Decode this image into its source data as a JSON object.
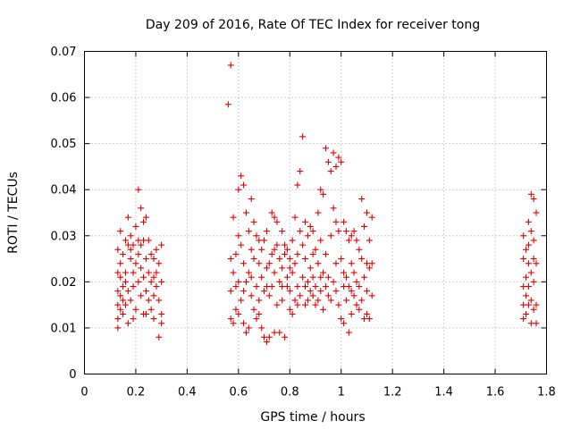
{
  "chart_data": {
    "type": "scatter",
    "title": "Day 209 of 2016, Rate Of TEC Index for receiver tong",
    "xlabel": "GPS time / hours",
    "ylabel": "ROTI / TECUs",
    "xlim": [
      0,
      1.8
    ],
    "ylim": [
      0,
      0.07
    ],
    "xticks": [
      "0",
      "0.2",
      "0.4",
      "0.6",
      "0.8",
      "1",
      "1.2",
      "1.4",
      "1.6",
      "1.8"
    ],
    "yticks": [
      "0",
      "0.01",
      "0.02",
      "0.03",
      "0.04",
      "0.05",
      "0.06",
      "0.07"
    ],
    "grid": true,
    "marker": "plus",
    "color": "#e00000",
    "series": [
      {
        "points": [
          [
            0.13,
            0.027
          ],
          [
            0.13,
            0.022
          ],
          [
            0.13,
            0.018
          ],
          [
            0.13,
            0.015
          ],
          [
            0.13,
            0.012
          ],
          [
            0.13,
            0.01
          ],
          [
            0.14,
            0.021
          ],
          [
            0.14,
            0.017
          ],
          [
            0.14,
            0.014
          ],
          [
            0.14,
            0.024
          ],
          [
            0.15,
            0.019
          ],
          [
            0.15,
            0.016
          ],
          [
            0.15,
            0.013
          ],
          [
            0.15,
            0.026
          ],
          [
            0.16,
            0.022
          ],
          [
            0.16,
            0.015
          ],
          [
            0.16,
            0.02
          ],
          [
            0.17,
            0.034
          ],
          [
            0.17,
            0.028
          ],
          [
            0.17,
            0.018
          ],
          [
            0.17,
            0.011
          ],
          [
            0.18,
            0.03
          ],
          [
            0.18,
            0.025
          ],
          [
            0.18,
            0.016
          ],
          [
            0.18,
            0.027
          ],
          [
            0.19,
            0.022
          ],
          [
            0.19,
            0.019
          ],
          [
            0.19,
            0.028
          ],
          [
            0.2,
            0.032
          ],
          [
            0.2,
            0.024
          ],
          [
            0.2,
            0.014
          ],
          [
            0.21,
            0.04
          ],
          [
            0.21,
            0.029
          ],
          [
            0.21,
            0.02
          ],
          [
            0.21,
            0.026
          ],
          [
            0.22,
            0.036
          ],
          [
            0.22,
            0.028
          ],
          [
            0.22,
            0.017
          ],
          [
            0.22,
            0.023
          ],
          [
            0.23,
            0.033
          ],
          [
            0.23,
            0.029
          ],
          [
            0.23,
            0.013
          ],
          [
            0.23,
            0.021
          ],
          [
            0.24,
            0.034
          ],
          [
            0.24,
            0.025
          ],
          [
            0.24,
            0.018
          ],
          [
            0.25,
            0.022
          ],
          [
            0.25,
            0.016
          ],
          [
            0.25,
            0.029
          ],
          [
            0.26,
            0.026
          ],
          [
            0.26,
            0.02
          ],
          [
            0.26,
            0.014
          ],
          [
            0.27,
            0.025
          ],
          [
            0.27,
            0.017
          ],
          [
            0.27,
            0.012
          ],
          [
            0.28,
            0.027
          ],
          [
            0.28,
            0.022
          ],
          [
            0.28,
            0.019
          ],
          [
            0.29,
            0.024
          ],
          [
            0.29,
            0.016
          ],
          [
            0.29,
            0.008
          ],
          [
            0.3,
            0.028
          ],
          [
            0.3,
            0.02
          ],
          [
            0.3,
            0.013
          ],
          [
            0.3,
            0.011
          ],
          [
            0.16,
            0.029
          ],
          [
            0.19,
            0.012
          ],
          [
            0.24,
            0.013
          ],
          [
            0.27,
            0.021
          ],
          [
            0.14,
            0.031
          ],
          [
            0.56,
            0.0585
          ],
          [
            0.57,
            0.067
          ],
          [
            0.57,
            0.025
          ],
          [
            0.57,
            0.018
          ],
          [
            0.57,
            0.012
          ],
          [
            0.58,
            0.034
          ],
          [
            0.58,
            0.022
          ],
          [
            0.58,
            0.011
          ],
          [
            0.59,
            0.026
          ],
          [
            0.59,
            0.019
          ],
          [
            0.59,
            0.014
          ],
          [
            0.6,
            0.04
          ],
          [
            0.6,
            0.03
          ],
          [
            0.6,
            0.02
          ],
          [
            0.6,
            0.013
          ],
          [
            0.61,
            0.043
          ],
          [
            0.61,
            0.028
          ],
          [
            0.61,
            0.016
          ],
          [
            0.62,
            0.041
          ],
          [
            0.62,
            0.024
          ],
          [
            0.62,
            0.011
          ],
          [
            0.63,
            0.035
          ],
          [
            0.63,
            0.02
          ],
          [
            0.63,
            0.009
          ],
          [
            0.64,
            0.031
          ],
          [
            0.64,
            0.022
          ],
          [
            0.64,
            0.01
          ],
          [
            0.65,
            0.038
          ],
          [
            0.65,
            0.027
          ],
          [
            0.65,
            0.017
          ],
          [
            0.66,
            0.033
          ],
          [
            0.66,
            0.025
          ],
          [
            0.66,
            0.014
          ],
          [
            0.67,
            0.03
          ],
          [
            0.67,
            0.019
          ],
          [
            0.67,
            0.012
          ],
          [
            0.68,
            0.029
          ],
          [
            0.68,
            0.024
          ],
          [
            0.68,
            0.016
          ],
          [
            0.69,
            0.027
          ],
          [
            0.69,
            0.021
          ],
          [
            0.69,
            0.01
          ],
          [
            0.7,
            0.029
          ],
          [
            0.7,
            0.018
          ],
          [
            0.7,
            0.008
          ],
          [
            0.71,
            0.031
          ],
          [
            0.71,
            0.023
          ],
          [
            0.71,
            0.007
          ],
          [
            0.72,
            0.024
          ],
          [
            0.72,
            0.017
          ],
          [
            0.72,
            0.008
          ],
          [
            0.73,
            0.035
          ],
          [
            0.73,
            0.026
          ],
          [
            0.73,
            0.019
          ],
          [
            0.74,
            0.034
          ],
          [
            0.74,
            0.022
          ],
          [
            0.74,
            0.009
          ],
          [
            0.75,
            0.033
          ],
          [
            0.75,
            0.028
          ],
          [
            0.75,
            0.015
          ],
          [
            0.76,
            0.025
          ],
          [
            0.76,
            0.02
          ],
          [
            0.76,
            0.009
          ],
          [
            0.77,
            0.031
          ],
          [
            0.77,
            0.023
          ],
          [
            0.77,
            0.016
          ],
          [
            0.78,
            0.028
          ],
          [
            0.78,
            0.026
          ],
          [
            0.78,
            0.008
          ],
          [
            0.79,
            0.027
          ],
          [
            0.79,
            0.021
          ],
          [
            0.79,
            0.019
          ],
          [
            0.8,
            0.025
          ],
          [
            0.8,
            0.018
          ],
          [
            0.8,
            0.014
          ],
          [
            0.81,
            0.029
          ],
          [
            0.81,
            0.022
          ],
          [
            0.81,
            0.013
          ],
          [
            0.82,
            0.034
          ],
          [
            0.82,
            0.024
          ],
          [
            0.82,
            0.016
          ],
          [
            0.83,
            0.041
          ],
          [
            0.83,
            0.026
          ],
          [
            0.83,
            0.019
          ],
          [
            0.84,
            0.044
          ],
          [
            0.84,
            0.031
          ],
          [
            0.84,
            0.017
          ],
          [
            0.85,
            0.0515
          ],
          [
            0.85,
            0.028
          ],
          [
            0.85,
            0.021
          ],
          [
            0.86,
            0.033
          ],
          [
            0.86,
            0.025
          ],
          [
            0.86,
            0.015
          ],
          [
            0.87,
            0.03
          ],
          [
            0.87,
            0.02
          ],
          [
            0.87,
            0.016
          ],
          [
            0.88,
            0.032
          ],
          [
            0.88,
            0.023
          ],
          [
            0.88,
            0.018
          ],
          [
            0.89,
            0.031
          ],
          [
            0.89,
            0.021
          ],
          [
            0.89,
            0.017
          ],
          [
            0.9,
            0.027
          ],
          [
            0.9,
            0.019
          ],
          [
            0.9,
            0.015
          ],
          [
            0.91,
            0.035
          ],
          [
            0.91,
            0.024
          ],
          [
            0.91,
            0.016
          ],
          [
            0.92,
            0.04
          ],
          [
            0.92,
            0.029
          ],
          [
            0.92,
            0.018
          ],
          [
            0.93,
            0.039
          ],
          [
            0.93,
            0.022
          ],
          [
            0.93,
            0.014
          ],
          [
            0.94,
            0.049
          ],
          [
            0.94,
            0.026
          ],
          [
            0.94,
            0.019
          ],
          [
            0.95,
            0.046
          ],
          [
            0.95,
            0.021
          ],
          [
            0.95,
            0.017
          ],
          [
            0.96,
            0.044
          ],
          [
            0.96,
            0.03
          ],
          [
            0.96,
            0.016
          ],
          [
            0.97,
            0.048
          ],
          [
            0.97,
            0.036
          ],
          [
            0.97,
            0.02
          ],
          [
            0.98,
            0.045
          ],
          [
            0.98,
            0.033
          ],
          [
            0.98,
            0.018
          ],
          [
            0.99,
            0.047
          ],
          [
            0.99,
            0.031
          ],
          [
            0.99,
            0.015
          ],
          [
            1.0,
            0.046
          ],
          [
            1.0,
            0.025
          ],
          [
            1.0,
            0.012
          ],
          [
            1.01,
            0.033
          ],
          [
            1.01,
            0.022
          ],
          [
            1.01,
            0.011
          ],
          [
            1.02,
            0.031
          ],
          [
            1.02,
            0.021
          ],
          [
            1.02,
            0.016
          ],
          [
            1.03,
            0.029
          ],
          [
            1.03,
            0.019
          ],
          [
            1.03,
            0.009
          ],
          [
            1.04,
            0.03
          ],
          [
            1.04,
            0.024
          ],
          [
            1.04,
            0.013
          ],
          [
            1.05,
            0.031
          ],
          [
            1.05,
            0.022
          ],
          [
            1.05,
            0.017
          ],
          [
            1.06,
            0.029
          ],
          [
            1.06,
            0.02
          ],
          [
            1.06,
            0.015
          ],
          [
            1.07,
            0.027
          ],
          [
            1.07,
            0.019
          ],
          [
            1.07,
            0.014
          ],
          [
            1.08,
            0.038
          ],
          [
            1.08,
            0.025
          ],
          [
            1.08,
            0.016
          ],
          [
            1.09,
            0.032
          ],
          [
            1.09,
            0.021
          ],
          [
            1.09,
            0.012
          ],
          [
            1.1,
            0.035
          ],
          [
            1.1,
            0.024
          ],
          [
            1.1,
            0.018
          ],
          [
            1.11,
            0.029
          ],
          [
            1.11,
            0.023
          ],
          [
            1.11,
            0.012
          ],
          [
            1.12,
            0.034
          ],
          [
            1.12,
            0.024
          ],
          [
            1.12,
            0.017
          ],
          [
            0.62,
            0.018
          ],
          [
            0.68,
            0.013
          ],
          [
            0.74,
            0.027
          ],
          [
            0.8,
            0.023
          ],
          [
            0.86,
            0.019
          ],
          [
            0.92,
            0.021
          ],
          [
            0.98,
            0.024
          ],
          [
            1.04,
            0.018
          ],
          [
            1.1,
            0.013
          ],
          [
            0.65,
            0.021
          ],
          [
            0.77,
            0.019
          ],
          [
            0.89,
            0.026
          ],
          [
            1.01,
            0.019
          ],
          [
            0.83,
            0.015
          ],
          [
            0.71,
            0.019
          ],
          [
            1.71,
            0.025
          ],
          [
            1.71,
            0.019
          ],
          [
            1.71,
            0.015
          ],
          [
            1.71,
            0.012
          ],
          [
            1.72,
            0.027
          ],
          [
            1.72,
            0.021
          ],
          [
            1.72,
            0.017
          ],
          [
            1.72,
            0.013
          ],
          [
            1.73,
            0.033
          ],
          [
            1.73,
            0.024
          ],
          [
            1.73,
            0.019
          ],
          [
            1.73,
            0.015
          ],
          [
            1.74,
            0.039
          ],
          [
            1.74,
            0.031
          ],
          [
            1.74,
            0.022
          ],
          [
            1.74,
            0.016
          ],
          [
            1.74,
            0.011
          ],
          [
            1.75,
            0.038
          ],
          [
            1.75,
            0.029
          ],
          [
            1.75,
            0.02
          ],
          [
            1.75,
            0.014
          ],
          [
            1.76,
            0.035
          ],
          [
            1.76,
            0.024
          ],
          [
            1.76,
            0.015
          ],
          [
            1.76,
            0.011
          ],
          [
            1.71,
            0.03
          ],
          [
            1.73,
            0.028
          ],
          [
            1.75,
            0.025
          ]
        ]
      }
    ]
  }
}
